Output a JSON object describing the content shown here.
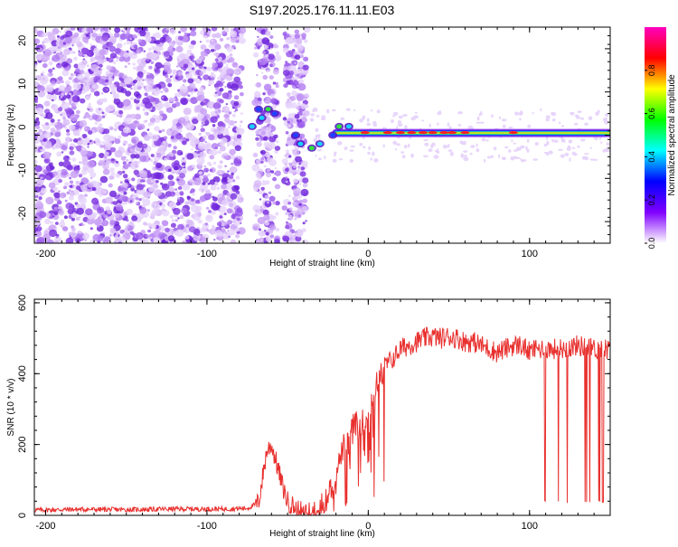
{
  "page_title": "S197.2025.176.11.11.E03",
  "colors": {
    "snr_line": "#e8302e",
    "axis": "#000000",
    "background": "#ffffff",
    "spectral_dots": "#8a3cf0"
  },
  "chart_data": [
    {
      "type": "heatmap",
      "title": "S197.2025.176.11.11.E03",
      "xlabel": "Height of straight line (km)",
      "ylabel": "Frequency (Hz)",
      "xlim": [
        -207,
        150
      ],
      "ylim": [
        -25,
        25
      ],
      "xticks": [
        -200,
        -100,
        0,
        100
      ],
      "yticks": [
        -20,
        -10,
        0,
        10,
        20
      ],
      "colorbar": {
        "label": "Normalized spectral amplitude",
        "range": [
          0,
          1
        ],
        "ticks": [
          "0.0",
          "0.2",
          "0.4",
          "0.6",
          "0.8"
        ],
        "tick_values": [
          0.0,
          0.2,
          0.4,
          0.6,
          0.8
        ],
        "colors": [
          "#ffffff",
          "#8000ff",
          "#0000ff",
          "#00ffff",
          "#00ff00",
          "#ffff00",
          "#ff0000",
          "#ff00c0"
        ]
      },
      "features": [
        {
          "name": "noise",
          "x_range": [
            -207,
            -78
          ],
          "freq_range": [
            -25,
            25
          ],
          "amplitude": 0.1
        },
        {
          "name": "transition",
          "x_range": [
            -78,
            -35
          ],
          "freq_range": [
            -25,
            25
          ],
          "amplitude": 0.15
        },
        {
          "name": "carrier",
          "x_range": [
            -20,
            150
          ],
          "freq": 0.5,
          "amplitude": 0.8
        }
      ]
    },
    {
      "type": "line",
      "xlabel": "Height of straight line (km)",
      "ylabel": "SNR (10 * v/v)",
      "xlim": [
        -207,
        150
      ],
      "ylim": [
        0,
        610
      ],
      "xticks": [
        -200,
        -100,
        0,
        100
      ],
      "yticks": [
        0,
        200,
        400,
        600
      ],
      "series": [
        {
          "x": [
            -207,
            -180,
            -150,
            -120,
            -90,
            -75,
            -68,
            -63,
            -60,
            -57,
            -53,
            -50,
            -45,
            -40,
            -35,
            -30,
            -25,
            -22,
            -18,
            -15,
            -12,
            -10,
            -8,
            -5,
            -2,
            0,
            3,
            6,
            10,
            15,
            20,
            25,
            30,
            35,
            40,
            45,
            50,
            55,
            60,
            65,
            70,
            75,
            80,
            85,
            90,
            95,
            100,
            104,
            110,
            120,
            130,
            140,
            145,
            150
          ],
          "values": [
            15,
            17,
            16,
            18,
            18,
            20,
            35,
            180,
            200,
            150,
            80,
            40,
            20,
            10,
            10,
            20,
            60,
            90,
            150,
            200,
            200,
            250,
            260,
            260,
            270,
            280,
            350,
            380,
            420,
            440,
            470,
            480,
            490,
            500,
            505,
            500,
            505,
            500,
            490,
            490,
            480,
            470,
            460,
            470,
            480,
            480,
            460,
            470,
            470,
            470,
            480,
            470,
            470,
            470
          ]
        }
      ],
      "dropouts": {
        "x_range": [
          104,
          148
        ],
        "low_value": 35
      }
    }
  ]
}
